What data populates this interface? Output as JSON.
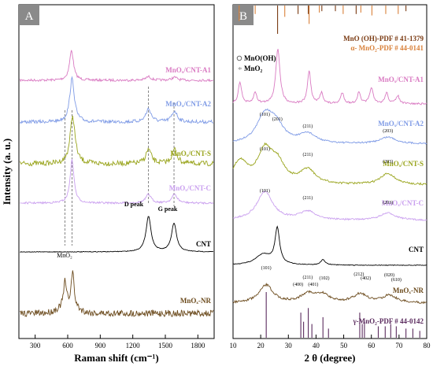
{
  "charts": {
    "A": {
      "panel_label": "A",
      "ylabel": "Intensity (a. u.)",
      "xlabel": "Raman shift (cm⁻¹)",
      "xticks": [
        "300",
        "600",
        "900",
        "1200",
        "1500",
        "1800"
      ],
      "annotations": {
        "d_peak": "D peak",
        "g_peak": "G peak",
        "mno2_peak": "MnO₂"
      },
      "traces": [
        {
          "label": "MnOₓ/CNT-A1",
          "color": "#d97ac2"
        },
        {
          "label": "MnOₓ/CNT-A2",
          "color": "#7f9be6"
        },
        {
          "label": "MnOₓ/CNT-S",
          "color": "#9aa51e"
        },
        {
          "label": "MnOₓ/CNT-C",
          "color": "#caa0ef"
        },
        {
          "label": "CNT",
          "color": "#000000"
        },
        {
          "label": "MnOₓ-NR",
          "color": "#6b4a1c"
        }
      ]
    },
    "B": {
      "panel_label": "B",
      "xlabel": "2 θ (degree)",
      "xticks": [
        "10",
        "20",
        "30",
        "40",
        "50",
        "60",
        "70",
        "80"
      ],
      "ref_top_1": "MnO (OH)-PDF # 41-1379",
      "ref_top_2": "α- MnO₂-PDF # 44-0141",
      "ref_bottom": "γ-MnO₂-PDF # 44-0142",
      "legend": {
        "mnooh": "MnO(OH)",
        "mno2": "MnO₂"
      },
      "traces": [
        {
          "label": "MnOₓ/CNT-A1",
          "color": "#d97ac2"
        },
        {
          "label": "MnOₓ/CNT-A2",
          "color": "#7f9be6"
        },
        {
          "label": "MnOₓ/CNT-S",
          "color": "#9aa51e"
        },
        {
          "label": "MnOₓ/CNT-C",
          "color": "#caa0ef"
        },
        {
          "label": "CNT",
          "color": "#000000"
        },
        {
          "label": "MnOₓ-NR",
          "color": "#6b4a1c"
        }
      ],
      "hkl": {
        "a2": [
          "(101)",
          "(201)",
          "(211)",
          "(203)"
        ],
        "s": [
          "(101)",
          "(211)",
          "(203)"
        ],
        "c": [
          "(101)",
          "(211)",
          "(203)"
        ],
        "nr": [
          "(101)",
          "(400)",
          "(211)",
          "(401)",
          "(102)",
          "(212)",
          "(402)",
          "(020)",
          "(610)"
        ]
      }
    }
  },
  "chart_data": [
    {
      "type": "line",
      "xlabel": "Raman shift (cm⁻¹)",
      "ylabel": "Intensity (a. u.)",
      "xlim": [
        150,
        1950
      ],
      "series": [
        {
          "name": "MnOₓ/CNT-A1",
          "peaks": [
            [
              635,
              1.0
            ],
            [
              1345,
              0.12
            ],
            [
              1585,
              0.1
            ]
          ]
        },
        {
          "name": "MnOₓ/CNT-A2",
          "peaks": [
            [
              640,
              1.0
            ],
            [
              1345,
              0.3
            ],
            [
              1585,
              0.25
            ]
          ]
        },
        {
          "name": "MnOₓ/CNT-S",
          "peaks": [
            [
              645,
              1.0
            ],
            [
              1345,
              0.3
            ],
            [
              1585,
              0.3
            ]
          ]
        },
        {
          "name": "MnOₓ/CNT-C",
          "peaks": [
            [
              640,
              1.0
            ],
            [
              1345,
              0.2
            ],
            [
              1585,
              0.2
            ]
          ]
        },
        {
          "name": "CNT",
          "peaks": [
            [
              1345,
              1.0
            ],
            [
              1580,
              0.8
            ]
          ]
        },
        {
          "name": "MnOₓ-NR",
          "peaks": [
            [
              575,
              0.7
            ],
            [
              645,
              1.0
            ]
          ]
        }
      ],
      "annotations": [
        "D peak",
        "G peak",
        "MnO₂"
      ]
    },
    {
      "type": "line",
      "xlabel": "2 θ (degree)",
      "xlim": [
        10,
        80
      ],
      "series": [
        {
          "name": "MnOₓ/CNT-A1",
          "peaks": [
            [
              12.5,
              0.4
            ],
            [
              18,
              0.2
            ],
            [
              26.2,
              1.0
            ],
            [
              37.5,
              0.6
            ],
            [
              42,
              0.2
            ],
            [
              49.5,
              0.2
            ],
            [
              55.5,
              0.2
            ],
            [
              60,
              0.3
            ],
            [
              65.5,
              0.2
            ],
            [
              69.5,
              0.15
            ]
          ]
        },
        {
          "name": "MnOₓ/CNT-A2",
          "peaks": [
            [
              21.5,
              1.0
            ],
            [
              25.5,
              0.6
            ],
            [
              37,
              0.35
            ],
            [
              66,
              0.25
            ]
          ]
        },
        {
          "name": "MnOₓ/CNT-S",
          "peaks": [
            [
              12.5,
              0.7
            ],
            [
              21.5,
              1.0
            ],
            [
              26,
              0.6
            ],
            [
              37,
              0.45
            ],
            [
              66,
              0.35
            ]
          ]
        },
        {
          "name": "MnOₓ/CNT-C",
          "peaks": [
            [
              21.5,
              1.0
            ],
            [
              37,
              0.3
            ],
            [
              66,
              0.25
            ]
          ]
        },
        {
          "name": "CNT",
          "peaks": [
            [
              21,
              0.3
            ],
            [
              26,
              1.0
            ],
            [
              42.5,
              0.15
            ]
          ]
        },
        {
          "name": "MnOₓ-NR",
          "peaks": [
            [
              22,
              0.7
            ],
            [
              37,
              0.35
            ],
            [
              42.5,
              0.3
            ],
            [
              56,
              0.35
            ],
            [
              66.5,
              0.3
            ]
          ]
        }
      ],
      "reference_patterns": [
        "MnO (OH)-PDF # 41-1379",
        "α- MnO₂-PDF # 44-0141",
        "γ-MnO₂-PDF # 44-0142"
      ]
    }
  ]
}
